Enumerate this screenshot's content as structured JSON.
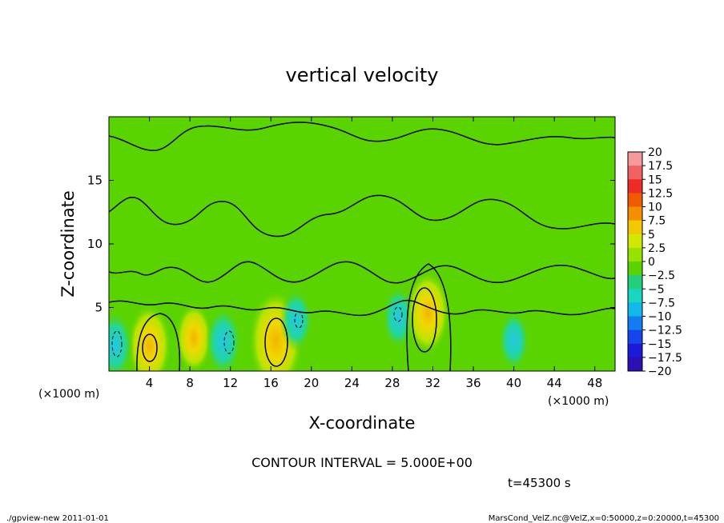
{
  "chart_data": {
    "type": "heatmap",
    "title": "vertical velocity",
    "xlabel": "X-coordinate",
    "ylabel": "Z-coordinate",
    "x_unit_left": "(×1000 m)",
    "x_unit_right": "(×1000 m)",
    "xlim": [
      0,
      50
    ],
    "ylim": [
      0,
      20
    ],
    "xticks": [
      4,
      8,
      12,
      16,
      20,
      24,
      28,
      32,
      36,
      40,
      44,
      48
    ],
    "yticks": [
      5,
      10,
      15
    ],
    "colorbar": {
      "levels": [
        "20",
        "17.5",
        "15",
        "12.5",
        "10",
        "7.5",
        "5",
        "2.5",
        "0",
        "-2.5",
        "-5",
        "-7.5",
        "-10",
        "-12.5",
        "-15",
        "-17.5",
        "-20"
      ],
      "colors": [
        "#f49a9a",
        "#f06262",
        "#ee2a24",
        "#f05a00",
        "#f49000",
        "#f2c800",
        "#d2e800",
        "#98e200",
        "#5ad400",
        "#22d07a",
        "#18d6c0",
        "#10b8ec",
        "#107ef0",
        "#1446ee",
        "#1a1ad8",
        "#2c10b4",
        "#5a0ca4"
      ]
    },
    "background_color": "#5ad400",
    "features": [
      {
        "x": 4.0,
        "z": 2.0,
        "value": 6,
        "kind": "updraft"
      },
      {
        "x": 8.4,
        "z": 2.6,
        "value": 4,
        "kind": "updraft"
      },
      {
        "x": 11.3,
        "z": 2.3,
        "value": -4,
        "kind": "downdraft"
      },
      {
        "x": 16.5,
        "z": 2.4,
        "value": 9,
        "kind": "updraft"
      },
      {
        "x": 18.5,
        "z": 4.0,
        "value": -3,
        "kind": "downdraft"
      },
      {
        "x": 28.6,
        "z": 4.2,
        "value": -3,
        "kind": "downdraft"
      },
      {
        "x": 31.5,
        "z": 4.6,
        "value": 6,
        "kind": "updraft"
      },
      {
        "x": 0.6,
        "z": 2.0,
        "value": -4,
        "kind": "downdraft"
      },
      {
        "x": 40.0,
        "z": 2.4,
        "value": -2.5,
        "kind": "downdraft"
      }
    ]
  },
  "contour_interval_label": "CONTOUR INTERVAL = 5.000E+00",
  "time_label": "t=45300 s",
  "footer_left": "./gpview-new  2011-01-01",
  "footer_right": "MarsCond_VelZ.nc@VelZ,x=0:50000,z=0:20000,t=45300"
}
